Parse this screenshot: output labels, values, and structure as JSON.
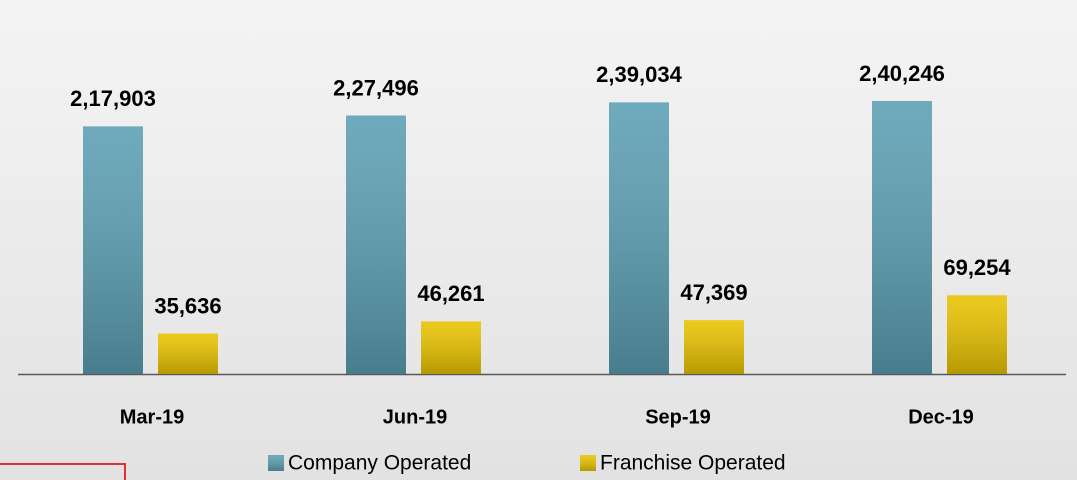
{
  "chart_data": {
    "type": "bar",
    "categories": [
      "Mar-19",
      "Jun-19",
      "Sep-19",
      "Dec-19"
    ],
    "series": [
      {
        "name": "Company Operated",
        "color": "#5b9fb3",
        "values": [
          217903,
          227496,
          239034,
          240246
        ],
        "value_labels": [
          "2,17,903",
          "2,27,496",
          "2,39,034",
          "2,40,246"
        ]
      },
      {
        "name": "Franchise Operated",
        "color": "#e8c200",
        "values": [
          35636,
          46261,
          47369,
          69254
        ],
        "value_labels": [
          "35,636",
          "46,261",
          "47,369",
          "69,254"
        ]
      }
    ]
  }
}
